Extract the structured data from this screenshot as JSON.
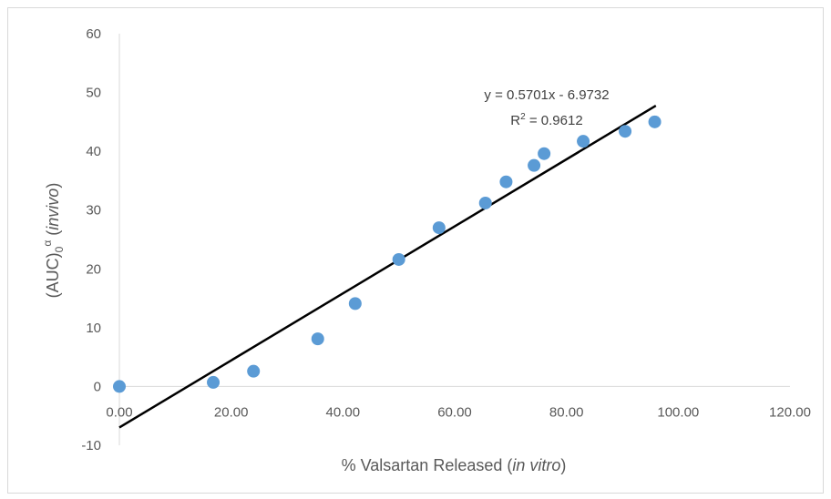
{
  "chart_data": {
    "type": "scatter",
    "xlabel": {
      "main": "% Valsartan Released (",
      "italic": "in vitro",
      "close": ")"
    },
    "ylabel": {
      "prefix": "(AUC)",
      "sub": "0",
      "sup": "α",
      "space": " (",
      "italic": "invivo",
      "close": ")"
    },
    "xlim": [
      0,
      120
    ],
    "ylim": [
      -10,
      60
    ],
    "xticks": [
      "0.00",
      "20.00",
      "40.00",
      "60.00",
      "80.00",
      "100.00",
      "120.00"
    ],
    "yticks": [
      "-10",
      "0",
      "10",
      "20",
      "30",
      "40",
      "50",
      "60"
    ],
    "grid": false,
    "series": [
      {
        "color": "#5b9bd5",
        "points": [
          [
            0.0,
            0.0
          ],
          [
            16.8,
            0.7
          ],
          [
            24.0,
            2.6
          ],
          [
            35.5,
            8.1
          ],
          [
            42.2,
            14.1
          ],
          [
            50.0,
            21.6
          ],
          [
            57.2,
            27.0
          ],
          [
            65.5,
            31.2
          ],
          [
            69.2,
            34.8
          ],
          [
            74.2,
            37.6
          ],
          [
            76.0,
            39.6
          ],
          [
            83.0,
            41.7
          ],
          [
            90.5,
            43.4
          ],
          [
            95.8,
            45.0
          ]
        ]
      }
    ],
    "trendline": {
      "slope": 0.5701,
      "intercept": -6.9732,
      "x_range": [
        0,
        96
      ],
      "color": "#000000",
      "equation": "y = 0.5701x - 6.9732",
      "r_squared": {
        "prefix": "R",
        "sup": "2",
        "rest": " = 0.9612"
      }
    }
  }
}
